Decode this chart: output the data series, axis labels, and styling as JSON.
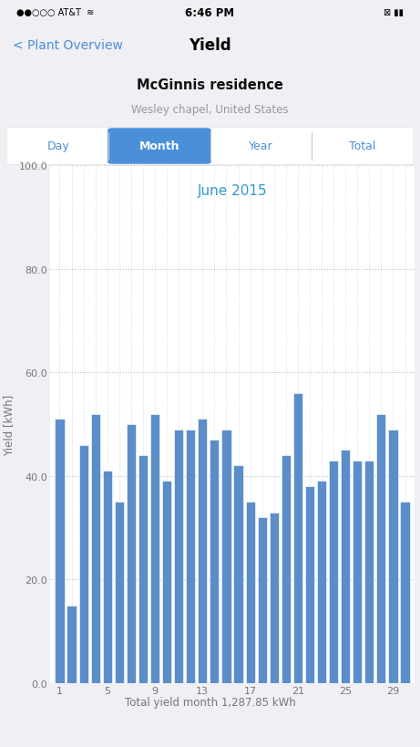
{
  "chart_title": "June 2015",
  "chart_title_color": "#3399CC",
  "ylabel": "Yield [kWh]",
  "xlabel": "Total yield month 1,287.85 kWh",
  "ylim": [
    0,
    100
  ],
  "yticks": [
    0.0,
    20.0,
    40.0,
    60.0,
    80.0,
    100.0
  ],
  "xticks": [
    1,
    5,
    9,
    13,
    17,
    21,
    25,
    29
  ],
  "bar_color": "#5B8EC9",
  "bar_edge_color": "#ffffff",
  "fig_bg": "#efeff4",
  "chart_bg": "#ffffff",
  "values": [
    51,
    15,
    46,
    52,
    41,
    35,
    50,
    44,
    52,
    39,
    49,
    49,
    51,
    47,
    49,
    42,
    35,
    32,
    33,
    44,
    56,
    38,
    39,
    43,
    45,
    43,
    43,
    52,
    49,
    35
  ],
  "nav_back": "< Plant Overview",
  "nav_title": "Yield",
  "plant_name": "McGinnis residence",
  "plant_location": "Wesley chapel, United States",
  "tab_labels": [
    "Day",
    "Month",
    "Year",
    "Total"
  ],
  "active_tab_idx": 1,
  "active_tab_color": "#4A90D9",
  "tab_text_color": "#4A90D9",
  "status_center": "6:46 PM"
}
